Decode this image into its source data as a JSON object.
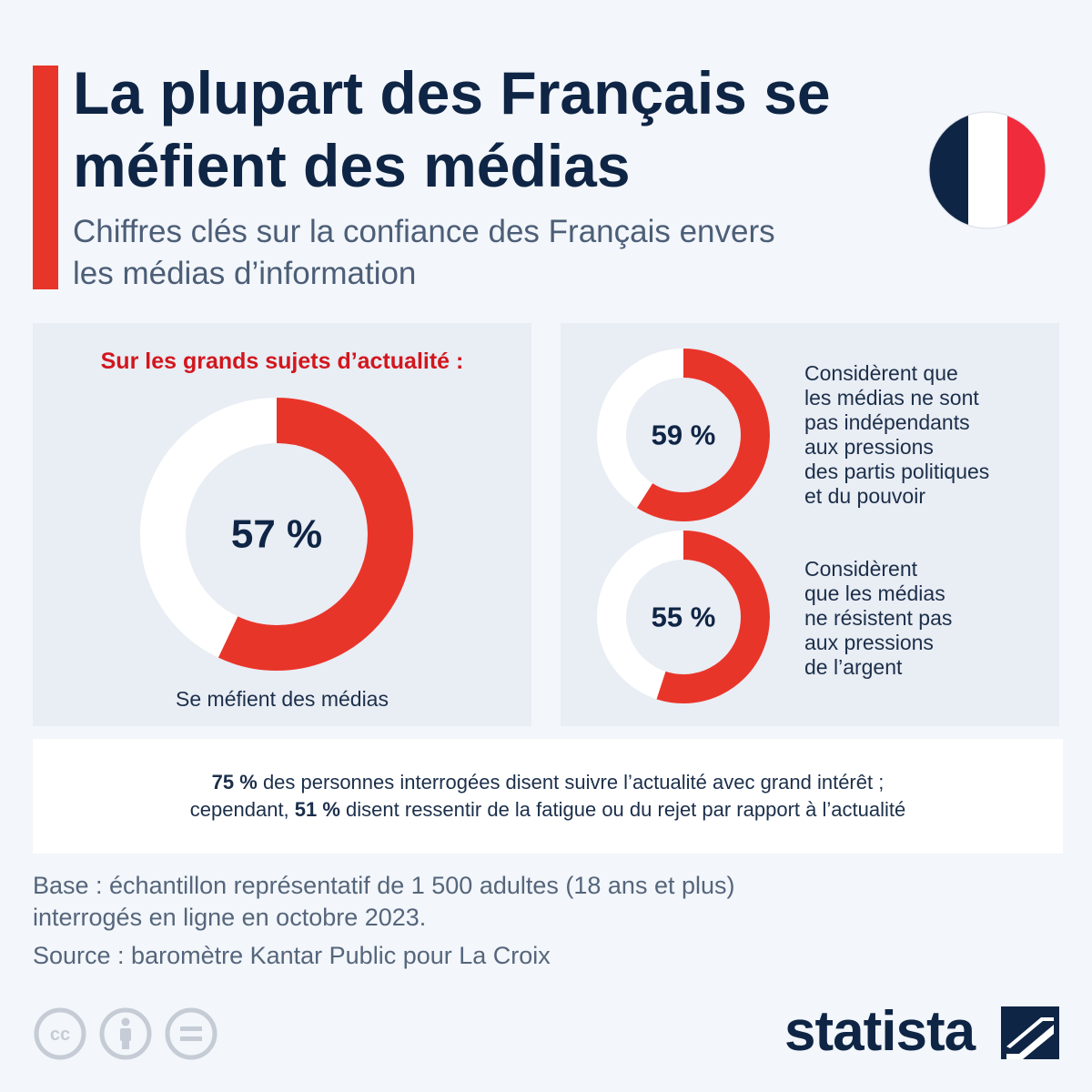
{
  "header": {
    "title_line1": "La plupart des Français se",
    "title_line2": "méfient des médias",
    "subtitle_line1": "Chiffres clés sur la confiance des Français envers",
    "subtitle_line2": "les médias d’information"
  },
  "colors": {
    "accent_red": "#e8352a",
    "heading_red": "#d2161d",
    "navy": "#0f2545",
    "flag_blue": "#0f2545",
    "flag_white": "#ffffff",
    "flag_red": "#ef2b3c",
    "donut_remainder": "#ffffff"
  },
  "flag": {
    "icon": "france-flag-icon"
  },
  "chart_data": [
    {
      "type": "pie",
      "title": "Sur les grands sujets d’actualité :",
      "value": 57,
      "value_label": "57 %",
      "caption": "Se méfient des médias"
    },
    {
      "type": "pie",
      "value": 59,
      "value_label": "59 %",
      "description": [
        "Considèrent que",
        "les médias ne sont",
        "pas indépendants",
        "aux pressions",
        "des partis politiques",
        "et du pouvoir"
      ]
    },
    {
      "type": "pie",
      "value": 55,
      "value_label": "55 %",
      "description": [
        "Considèrent",
        "que les médias",
        "ne résistent pas",
        "aux pressions",
        "de l’argent"
      ]
    }
  ],
  "footnote": {
    "line1_bold": "75 %",
    "line1_rest": " des personnes interrogées disent suivre l’actualité avec grand intérêt ;",
    "line2_start": "cependant, ",
    "line2_bold": "51 %",
    "line2_rest": " disent ressentir de la fatigue ou du rejet par rapport à l’actualité"
  },
  "base": {
    "line1": "Base : échantillon représentatif de 1 500 adultes (18 ans et plus)",
    "line2": "interrogés en ligne en octobre 2023."
  },
  "source": "Source : baromètre Kantar Public pour La Croix",
  "license_icons": [
    "cc-icon",
    "by-icon",
    "nd-icon"
  ],
  "brand": {
    "name": "statista",
    "icon": "statista-logo-icon"
  }
}
